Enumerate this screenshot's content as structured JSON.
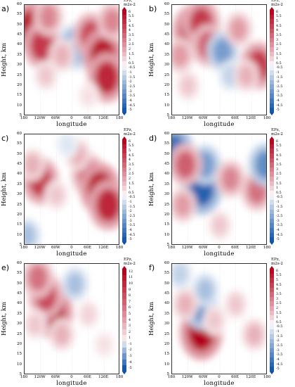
{
  "chart_data": [
    {
      "type": "heatmap",
      "panel_label": "a)",
      "xlabel": "longitude",
      "ylabel": "Height, km",
      "x_ticks": [
        "180",
        "120W",
        "60W",
        "0",
        "60E",
        "120E",
        "180"
      ],
      "y_ticks": [
        "60",
        "55",
        "50",
        "45",
        "40",
        "35",
        "30",
        "25",
        "20",
        "15",
        "10",
        "5"
      ],
      "ylim": [
        5,
        60
      ],
      "xlim": [
        -180,
        180
      ],
      "colorbar_title": "EPz,",
      "colorbar_units": "m2s-2",
      "colorbar_levels": [
        "6",
        "5.5",
        "5",
        "4.5",
        "4",
        "3.5",
        "3",
        "2.5",
        "2",
        "1.5",
        "1",
        "0.5",
        "-0.5",
        "-1",
        "-1.5",
        "-2",
        "-2.5",
        "-3",
        "-3.5",
        "-4",
        "-4.5",
        "-5"
      ],
      "clim": [
        -5,
        6
      ],
      "features": [
        {
          "lon": -155,
          "height": 49,
          "value": 5.5
        },
        {
          "lon": -115,
          "height": 40,
          "value": 4.5
        },
        {
          "lon": -90,
          "height": 54,
          "value": 2.5
        },
        {
          "lon": -100,
          "height": 25,
          "value": 1
        },
        {
          "lon": 0,
          "height": 41,
          "value": -2
        },
        {
          "lon": 15,
          "height": 36,
          "value": -1.5
        },
        {
          "lon": 70,
          "height": 45,
          "value": 4
        },
        {
          "lon": 115,
          "height": 35,
          "value": 5.5
        },
        {
          "lon": 130,
          "height": 24,
          "value": 5
        },
        {
          "lon": 150,
          "height": 52,
          "value": 2.5
        },
        {
          "lon": -40,
          "height": 35,
          "value": 1.5
        },
        {
          "lon": 60,
          "height": 15,
          "value": 0.5
        }
      ]
    },
    {
      "type": "heatmap",
      "panel_label": "b)",
      "xlabel": "longitude",
      "ylabel": "Height, km",
      "x_ticks": [
        "180",
        "120W",
        "60W",
        "0",
        "60E",
        "120E",
        "180"
      ],
      "y_ticks": [
        "60",
        "55",
        "50",
        "45",
        "40",
        "35",
        "30",
        "25",
        "20",
        "15",
        "10",
        "5"
      ],
      "ylim": [
        5,
        60
      ],
      "xlim": [
        -180,
        180
      ],
      "colorbar_title": "EPz,",
      "colorbar_units": "m2s-2",
      "colorbar_levels": [
        "6",
        "5.5",
        "5",
        "4.5",
        "4",
        "3.5",
        "3",
        "2.5",
        "2",
        "1.5",
        "1",
        "0.5",
        "-0.5",
        "-1",
        "-1.5",
        "-2",
        "-2.5",
        "-3",
        "-3.5",
        "-4",
        "-4.5",
        "-5"
      ],
      "clim": [
        -5,
        6
      ],
      "features": [
        {
          "lon": -100,
          "height": 47,
          "value": 5.5
        },
        {
          "lon": -70,
          "height": 51,
          "value": 4.5
        },
        {
          "lon": -45,
          "height": 40,
          "value": 3.5
        },
        {
          "lon": -150,
          "height": 35,
          "value": 2
        },
        {
          "lon": 10,
          "height": 37,
          "value": -2.5
        },
        {
          "lon": 40,
          "height": 25,
          "value": -1
        },
        {
          "lon": 70,
          "height": 48,
          "value": 2
        },
        {
          "lon": 145,
          "height": 30,
          "value": 4.5
        },
        {
          "lon": 100,
          "height": 25,
          "value": 1.5
        },
        {
          "lon": -120,
          "height": 20,
          "value": 1
        }
      ]
    },
    {
      "type": "heatmap",
      "panel_label": "c)",
      "xlabel": "longitude",
      "ylabel": "Height, km",
      "x_ticks": [
        "180",
        "120W",
        "60W",
        "0",
        "60E",
        "120E",
        "180"
      ],
      "y_ticks": [
        "60",
        "55",
        "50",
        "45",
        "40",
        "35",
        "30",
        "25",
        "20",
        "15",
        "10",
        "5"
      ],
      "ylim": [
        5,
        60
      ],
      "xlim": [
        -180,
        180
      ],
      "colorbar_title": "EPz,",
      "colorbar_units": "m2s-2",
      "colorbar_levels": [
        "6",
        "5.5",
        "5",
        "4.5",
        "4",
        "3.5",
        "3",
        "2.5",
        "2",
        "1.5",
        "1",
        "0.5",
        "-0.5",
        "-1",
        "-1.5",
        "-2",
        "-2.5",
        "-3",
        "-3.5",
        "-4",
        "-4.5",
        "-5"
      ],
      "clim": [
        -5,
        6
      ],
      "features": [
        {
          "lon": -120,
          "height": 37,
          "value": 4.5
        },
        {
          "lon": -150,
          "height": 45,
          "value": 1.5
        },
        {
          "lon": 60,
          "height": 40,
          "value": 3.5
        },
        {
          "lon": 105,
          "height": 33,
          "value": 5.5
        },
        {
          "lon": 135,
          "height": 25,
          "value": 5
        },
        {
          "lon": 20,
          "height": 50,
          "value": 1.5
        },
        {
          "lon": -170,
          "height": 10,
          "value": -1.5
        },
        {
          "lon": -60,
          "height": 30,
          "value": 1
        },
        {
          "lon": -20,
          "height": 55,
          "value": -0.5
        }
      ]
    },
    {
      "type": "heatmap",
      "panel_label": "d)",
      "xlabel": "longitude",
      "ylabel": "Height, km",
      "x_ticks": [
        "180",
        "120W",
        "60W",
        "0",
        "60E",
        "120E",
        "180"
      ],
      "y_ticks": [
        "60",
        "55",
        "50",
        "45",
        "40",
        "35",
        "30",
        "25",
        "20",
        "15",
        "10",
        "5"
      ],
      "ylim": [
        5,
        60
      ],
      "xlim": [
        -180,
        180
      ],
      "colorbar_title": "EPz,",
      "colorbar_units": "m2s-2",
      "colorbar_levels": [
        "6",
        "5.5",
        "5",
        "4.5",
        "4",
        "3.5",
        "3",
        "2.5",
        "2",
        "1.5",
        "1",
        "0.5",
        "-0.5",
        "-1",
        "-1.5",
        "-2",
        "-2.5",
        "-3",
        "-3.5",
        "-4",
        "-4.5",
        "-5"
      ],
      "clim": [
        -5,
        6
      ],
      "features": [
        {
          "lon": -70,
          "height": 33,
          "value": -4.5
        },
        {
          "lon": -55,
          "height": 45,
          "value": -2.5
        },
        {
          "lon": -172,
          "height": 52,
          "value": -4
        },
        {
          "lon": -130,
          "height": 45,
          "value": 3.5
        },
        {
          "lon": -140,
          "height": 25,
          "value": 2
        },
        {
          "lon": 40,
          "height": 38,
          "value": 2.5
        },
        {
          "lon": 140,
          "height": 32,
          "value": 3
        },
        {
          "lon": 172,
          "height": 45,
          "value": -3
        },
        {
          "lon": 0,
          "height": 15,
          "value": 1
        }
      ]
    },
    {
      "type": "heatmap",
      "panel_label": "e)",
      "xlabel": "longitude",
      "ylabel": "Height, km",
      "x_ticks": [
        "180",
        "120W",
        "60W",
        "0",
        "60E",
        "120E",
        "180"
      ],
      "y_ticks": [
        "60",
        "55",
        "50",
        "45",
        "40",
        "35",
        "30",
        "25",
        "20",
        "15",
        "10",
        "5"
      ],
      "ylim": [
        5,
        60
      ],
      "xlim": [
        -180,
        180
      ],
      "colorbar_title": "EPz,",
      "colorbar_units": "m2s-2",
      "colorbar_levels": [
        "12",
        "11",
        "10",
        "9",
        "8",
        "7",
        "6",
        "5",
        "4",
        "3",
        "2",
        "1",
        "-1",
        "-2",
        "-3",
        "-4",
        "-5"
      ],
      "clim": [
        -5,
        12
      ],
      "features": [
        {
          "lon": -75,
          "height": 36,
          "value": 11
        },
        {
          "lon": -100,
          "height": 44,
          "value": 8
        },
        {
          "lon": -130,
          "height": 53,
          "value": 6
        },
        {
          "lon": -40,
          "height": 25,
          "value": 3
        },
        {
          "lon": -140,
          "height": 30,
          "value": 2
        },
        {
          "lon": 60,
          "height": 35,
          "value": 1.5
        },
        {
          "lon": 120,
          "height": 20,
          "value": 1
        },
        {
          "lon": 10,
          "height": 50,
          "value": -1.5
        }
      ]
    },
    {
      "type": "heatmap",
      "panel_label": "f)",
      "xlabel": "longitude",
      "ylabel": "Height, km",
      "x_ticks": [
        "180",
        "120W",
        "60W",
        "0",
        "60E",
        "120E",
        "180"
      ],
      "y_ticks": [
        "60",
        "55",
        "50",
        "45",
        "40",
        "35",
        "30",
        "25",
        "20",
        "15",
        "10",
        "5"
      ],
      "ylim": [
        5,
        60
      ],
      "xlim": [
        -180,
        180
      ],
      "colorbar_title": "EPz,",
      "colorbar_units": "m2s-2",
      "colorbar_levels": [
        "6",
        "5.5",
        "5",
        "4.5",
        "4",
        "3.5",
        "3",
        "2.5",
        "2",
        "1.5",
        "1",
        "0.5",
        "-0.5",
        "-1",
        "-1.5",
        "-2",
        "-2.5",
        "-3",
        "-3.5",
        "-4",
        "-4.5",
        "-5"
      ],
      "clim": [
        -5,
        6
      ],
      "features": [
        {
          "lon": -70,
          "height": 26,
          "value": 6
        },
        {
          "lon": -70,
          "height": 38,
          "value": -3
        },
        {
          "lon": -55,
          "height": 47,
          "value": -1.5
        },
        {
          "lon": -130,
          "height": 40,
          "value": 1.5
        },
        {
          "lon": -20,
          "height": 32,
          "value": 1
        },
        {
          "lon": 60,
          "height": 40,
          "value": 1
        },
        {
          "lon": 130,
          "height": 25,
          "value": 1.5
        },
        {
          "lon": -150,
          "height": 55,
          "value": -1
        }
      ]
    }
  ],
  "colors": {
    "positive_max": "#b2001a",
    "negative_max": "#0b4fa6",
    "neutral": "#ffffff"
  }
}
